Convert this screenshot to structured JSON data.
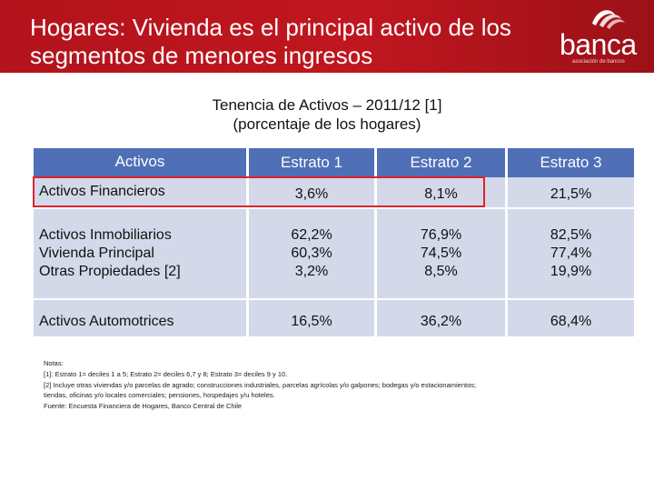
{
  "header": {
    "title": "Hogares: Vivienda es el principal activo de los\nsegmentos de menores ingresos",
    "logo_text": "banca",
    "logo_subtitle": "asociación de bancos"
  },
  "subtitle": {
    "line1": "Tenencia de Activos – 2011/12 [1]",
    "line2": "(porcentaje de los hogares)"
  },
  "table": {
    "headers": [
      "Activos",
      "Estrato 1",
      "Estrato 2",
      "Estrato 3"
    ],
    "rows": [
      {
        "labels": [
          "Activos Financieros"
        ],
        "estrato1": [
          "3,6%"
        ],
        "estrato2": [
          "8,1%"
        ],
        "estrato3": [
          "21,5%"
        ]
      },
      {
        "labels": [
          "Activos Inmobiliarios",
          "Vivienda Principal",
          "Otras Propiedades [2]"
        ],
        "estrato1": [
          "62,2%",
          "60,3%",
          "3,2%"
        ],
        "estrato2": [
          "76,9%",
          "74,5%",
          "8,5%"
        ],
        "estrato3": [
          "82,5%",
          "77,4%",
          "19,9%"
        ]
      },
      {
        "labels": [
          "Activos Automotrices"
        ],
        "estrato1": [
          "16,5%"
        ],
        "estrato2": [
          "36,2%"
        ],
        "estrato3": [
          "68,4%"
        ]
      }
    ]
  },
  "notes": [
    "Notas:",
    "[1]: Estrato 1= deciles 1 a 5; Estrato 2= deciles 6,7 y 8; Estrato 3= deciles 9 y 10.",
    "[2] Incluye otras viviendas y/o parcelas de agrado; construcciones industriales, parcelas agrícolas y/o galpones; bodegas y/o estacionamientos;",
    "tiendas, oficinas y/o locales comerciales; pensiones, hospedajes y/u hoteles.",
    "Fuente: Encuesta Financiera de Hogares, Banco Central de Chile"
  ],
  "colors": {
    "brand_red": "#c0161f",
    "header_blue": "#4f6fb7",
    "cell_blue": "#d3d9e9",
    "highlight_red": "#e0222d"
  }
}
